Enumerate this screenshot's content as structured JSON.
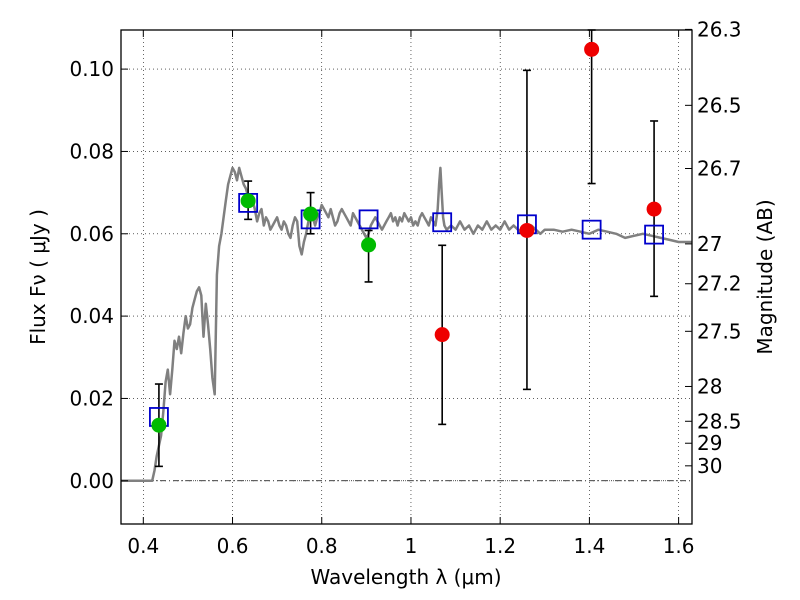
{
  "chart_data": {
    "type": "scatter",
    "xlabel": "Wavelength  λ (μm)",
    "ylabel": "Flux  Fν  ( μJy )",
    "ylabel_right": "Magnitude (AB)",
    "xlim": [
      0.35,
      1.63
    ],
    "ylim": [
      -0.0105,
      0.1095
    ],
    "grid": true,
    "x_ticks": [
      {
        "value": 0.4,
        "label": "0.4"
      },
      {
        "value": 0.6,
        "label": "0.6"
      },
      {
        "value": 0.8,
        "label": "0.8"
      },
      {
        "value": 1.0,
        "label": "1"
      },
      {
        "value": 1.2,
        "label": "1.2"
      },
      {
        "value": 1.4,
        "label": "1.4"
      },
      {
        "value": 1.6,
        "label": "1.6"
      }
    ],
    "y_ticks": [
      {
        "value": 0.0,
        "label": "0.00"
      },
      {
        "value": 0.02,
        "label": "0.02"
      },
      {
        "value": 0.04,
        "label": "0.04"
      },
      {
        "value": 0.06,
        "label": "0.06"
      },
      {
        "value": 0.08,
        "label": "0.08"
      },
      {
        "value": 0.1,
        "label": "0.10"
      }
    ],
    "right_ticks": [
      {
        "value": 26.3,
        "label": "26.3"
      },
      {
        "value": 26.5,
        "label": "26.5"
      },
      {
        "value": 26.7,
        "label": "26.7"
      },
      {
        "value": 27.0,
        "label": "27"
      },
      {
        "value": 27.2,
        "label": "27.2"
      },
      {
        "value": 27.5,
        "label": "27.5"
      },
      {
        "value": 28.0,
        "label": "28"
      },
      {
        "value": 28.5,
        "label": "28.5"
      },
      {
        "value": 29.0,
        "label": "29"
      },
      {
        "value": 30.0,
        "label": "30"
      }
    ],
    "series": [
      {
        "style": "line",
        "color": "#808080",
        "points": [
          [
            0.35,
            0.0
          ],
          [
            0.42,
            0.0
          ],
          [
            0.425,
            0.0025
          ],
          [
            0.43,
            0.006
          ],
          [
            0.44,
            0.011
          ],
          [
            0.445,
            0.017
          ],
          [
            0.45,
            0.024
          ],
          [
            0.455,
            0.027
          ],
          [
            0.46,
            0.021
          ],
          [
            0.465,
            0.027
          ],
          [
            0.47,
            0.034
          ],
          [
            0.475,
            0.032
          ],
          [
            0.48,
            0.035
          ],
          [
            0.485,
            0.031
          ],
          [
            0.49,
            0.036
          ],
          [
            0.495,
            0.04
          ],
          [
            0.5,
            0.037
          ],
          [
            0.505,
            0.038
          ],
          [
            0.51,
            0.042
          ],
          [
            0.515,
            0.044
          ],
          [
            0.52,
            0.046
          ],
          [
            0.525,
            0.047
          ],
          [
            0.53,
            0.045
          ],
          [
            0.535,
            0.035
          ],
          [
            0.54,
            0.043
          ],
          [
            0.545,
            0.038
          ],
          [
            0.55,
            0.032
          ],
          [
            0.555,
            0.025
          ],
          [
            0.56,
            0.021
          ],
          [
            0.565,
            0.05
          ],
          [
            0.57,
            0.057
          ],
          [
            0.575,
            0.06
          ],
          [
            0.58,
            0.064
          ],
          [
            0.585,
            0.068
          ],
          [
            0.59,
            0.072
          ],
          [
            0.595,
            0.074
          ],
          [
            0.6,
            0.076
          ],
          [
            0.605,
            0.075
          ],
          [
            0.61,
            0.073
          ],
          [
            0.615,
            0.076
          ],
          [
            0.62,
            0.074
          ],
          [
            0.625,
            0.072
          ],
          [
            0.63,
            0.071
          ],
          [
            0.635,
            0.069
          ],
          [
            0.64,
            0.067
          ],
          [
            0.645,
            0.068
          ],
          [
            0.65,
            0.066
          ],
          [
            0.655,
            0.063
          ],
          [
            0.66,
            0.065
          ],
          [
            0.665,
            0.066
          ],
          [
            0.67,
            0.062
          ],
          [
            0.675,
            0.064
          ],
          [
            0.68,
            0.063
          ],
          [
            0.685,
            0.061
          ],
          [
            0.69,
            0.062
          ],
          [
            0.695,
            0.063
          ],
          [
            0.7,
            0.064
          ],
          [
            0.705,
            0.062
          ],
          [
            0.71,
            0.061
          ],
          [
            0.715,
            0.063
          ],
          [
            0.72,
            0.062
          ],
          [
            0.725,
            0.06
          ],
          [
            0.73,
            0.059
          ],
          [
            0.735,
            0.062
          ],
          [
            0.74,
            0.064
          ],
          [
            0.745,
            0.063
          ],
          [
            0.75,
            0.057
          ],
          [
            0.755,
            0.055
          ],
          [
            0.76,
            0.058
          ],
          [
            0.765,
            0.06
          ],
          [
            0.77,
            0.063
          ],
          [
            0.775,
            0.065
          ],
          [
            0.78,
            0.064
          ],
          [
            0.785,
            0.062
          ],
          [
            0.79,
            0.064
          ],
          [
            0.795,
            0.065
          ],
          [
            0.8,
            0.067
          ],
          [
            0.805,
            0.066
          ],
          [
            0.81,
            0.065
          ],
          [
            0.815,
            0.064
          ],
          [
            0.82,
            0.066
          ],
          [
            0.825,
            0.064
          ],
          [
            0.83,
            0.062
          ],
          [
            0.835,
            0.063
          ],
          [
            0.84,
            0.065
          ],
          [
            0.845,
            0.066
          ],
          [
            0.85,
            0.065
          ],
          [
            0.855,
            0.064
          ],
          [
            0.86,
            0.063
          ],
          [
            0.865,
            0.062
          ],
          [
            0.87,
            0.065
          ],
          [
            0.875,
            0.064
          ],
          [
            0.88,
            0.063
          ],
          [
            0.885,
            0.062
          ],
          [
            0.89,
            0.061
          ],
          [
            0.895,
            0.06
          ],
          [
            0.9,
            0.059
          ],
          [
            0.905,
            0.06
          ],
          [
            0.91,
            0.062
          ],
          [
            0.915,
            0.063
          ],
          [
            0.92,
            0.064
          ],
          [
            0.925,
            0.063
          ],
          [
            0.93,
            0.062
          ],
          [
            0.935,
            0.061
          ],
          [
            0.94,
            0.062
          ],
          [
            0.945,
            0.063
          ],
          [
            0.95,
            0.064
          ],
          [
            0.955,
            0.065
          ],
          [
            0.96,
            0.063
          ],
          [
            0.965,
            0.064
          ],
          [
            0.97,
            0.062
          ],
          [
            0.975,
            0.064
          ],
          [
            0.98,
            0.063
          ],
          [
            0.985,
            0.065
          ],
          [
            0.99,
            0.064
          ],
          [
            0.995,
            0.063
          ],
          [
            1.0,
            0.064
          ],
          [
            1.005,
            0.062
          ],
          [
            1.01,
            0.063
          ],
          [
            1.015,
            0.062
          ],
          [
            1.02,
            0.064
          ],
          [
            1.025,
            0.065
          ],
          [
            1.03,
            0.064
          ],
          [
            1.035,
            0.063
          ],
          [
            1.04,
            0.062
          ],
          [
            1.045,
            0.064
          ],
          [
            1.05,
            0.063
          ],
          [
            1.055,
            0.062
          ],
          [
            1.06,
            0.066
          ],
          [
            1.063,
            0.072
          ],
          [
            1.066,
            0.076
          ],
          [
            1.069,
            0.07
          ],
          [
            1.072,
            0.064
          ],
          [
            1.075,
            0.062
          ],
          [
            1.08,
            0.061
          ],
          [
            1.09,
            0.062
          ],
          [
            1.1,
            0.061
          ],
          [
            1.11,
            0.063
          ],
          [
            1.12,
            0.061
          ],
          [
            1.13,
            0.062
          ],
          [
            1.14,
            0.06
          ],
          [
            1.15,
            0.062
          ],
          [
            1.16,
            0.061
          ],
          [
            1.17,
            0.063
          ],
          [
            1.18,
            0.061
          ],
          [
            1.19,
            0.062
          ],
          [
            1.2,
            0.061
          ],
          [
            1.21,
            0.063
          ],
          [
            1.22,
            0.061
          ],
          [
            1.23,
            0.062
          ],
          [
            1.24,
            0.061
          ],
          [
            1.25,
            0.06
          ],
          [
            1.26,
            0.061
          ],
          [
            1.27,
            0.062
          ],
          [
            1.28,
            0.061
          ],
          [
            1.29,
            0.06
          ],
          [
            1.3,
            0.061
          ],
          [
            1.32,
            0.061
          ],
          [
            1.34,
            0.0605
          ],
          [
            1.36,
            0.061
          ],
          [
            1.38,
            0.0605
          ],
          [
            1.4,
            0.06
          ],
          [
            1.42,
            0.061
          ],
          [
            1.44,
            0.0605
          ],
          [
            1.46,
            0.06
          ],
          [
            1.48,
            0.059
          ],
          [
            1.5,
            0.0595
          ],
          [
            1.52,
            0.06
          ],
          [
            1.54,
            0.0595
          ],
          [
            1.56,
            0.059
          ],
          [
            1.58,
            0.0585
          ],
          [
            1.6,
            0.058
          ],
          [
            1.63,
            0.058
          ]
        ]
      },
      {
        "style": "square",
        "color": "#0000cc",
        "points": [
          [
            0.435,
            0.0155
          ],
          [
            0.635,
            0.0675
          ],
          [
            0.775,
            0.0635
          ],
          [
            0.905,
            0.0635
          ],
          [
            1.07,
            0.0628
          ],
          [
            1.26,
            0.0623
          ],
          [
            1.405,
            0.061
          ],
          [
            1.545,
            0.0598
          ]
        ]
      },
      {
        "style": "circle",
        "color": "#00bb00",
        "points": [
          {
            "x": 0.435,
            "y": 0.0135,
            "err": [
              0.0035,
              0.0235
            ]
          },
          {
            "x": 0.635,
            "y": 0.068,
            "err": [
              0.0635,
              0.0728
            ]
          },
          {
            "x": 0.775,
            "y": 0.0648,
            "err": [
              0.06,
              0.07
            ]
          },
          {
            "x": 0.905,
            "y": 0.0573,
            "err": [
              0.0483,
              0.0608
            ]
          }
        ]
      },
      {
        "style": "circle",
        "color": "#ee0000",
        "points": [
          {
            "x": 1.07,
            "y": 0.0355,
            "err": [
              0.0137,
              0.0572
            ]
          },
          {
            "x": 1.26,
            "y": 0.0608,
            "err": [
              0.0222,
              0.0997
            ]
          },
          {
            "x": 1.405,
            "y": 0.1048,
            "err": [
              0.0722,
              0.1095
            ]
          },
          {
            "x": 1.545,
            "y": 0.066,
            "err": [
              0.0448,
              0.0874
            ]
          }
        ]
      }
    ]
  }
}
